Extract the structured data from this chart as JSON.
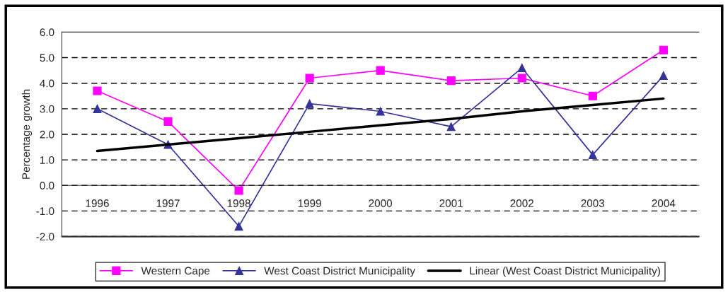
{
  "chart_data": {
    "type": "line",
    "ylabel": "Percentage growth",
    "categories": [
      "1996",
      "1997",
      "1998",
      "1999",
      "2000",
      "2001",
      "2002",
      "2003",
      "2004"
    ],
    "series": [
      {
        "name": "Western Cape",
        "color": "#ff00ff",
        "marker": "square",
        "values": [
          3.7,
          2.5,
          -0.2,
          4.2,
          4.5,
          4.1,
          4.2,
          3.5,
          5.3
        ]
      },
      {
        "name": "West Coast District Municipality",
        "color": "#333399",
        "marker": "triangle",
        "values": [
          3.0,
          1.6,
          -1.6,
          3.2,
          2.9,
          2.3,
          4.6,
          1.2,
          4.3
        ]
      },
      {
        "name": "Linear (West Coast District Municipality)",
        "color": "#000000",
        "marker": "none",
        "values": [
          1.35,
          1.6,
          1.85,
          2.1,
          2.35,
          2.6,
          2.9,
          3.15,
          3.4
        ]
      }
    ],
    "ylim": [
      -2,
      6
    ],
    "yticks": [
      {
        "value": -2,
        "label": "-2.0"
      },
      {
        "value": -1,
        "label": "-1.0"
      },
      {
        "value": 0,
        "label": "0.0"
      },
      {
        "value": 1,
        "label": "1.0"
      },
      {
        "value": 2,
        "label": "2.0"
      },
      {
        "value": 3,
        "label": "3.0"
      },
      {
        "value": 4,
        "label": "4.0"
      },
      {
        "value": 5,
        "label": "5.0"
      },
      {
        "value": 6,
        "label": "6.0"
      }
    ],
    "grid": "y",
    "legend": "bottom",
    "line_style": "solid"
  }
}
